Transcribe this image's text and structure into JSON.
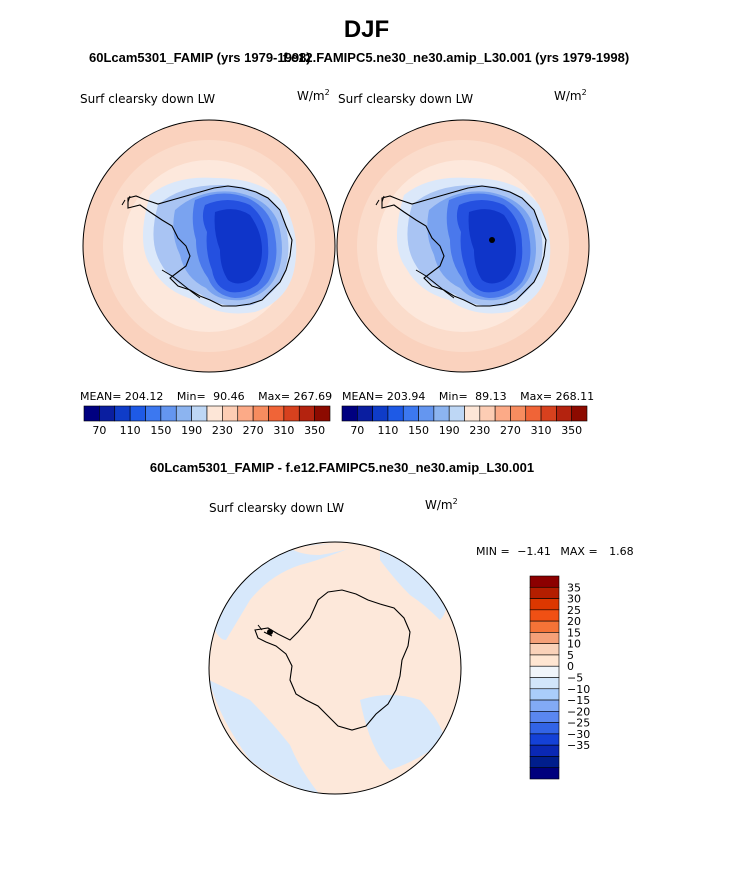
{
  "figure": {
    "title": "DJF",
    "subtitle_left": "60Lcam5301_FAMIP (yrs 1979-1998)",
    "subtitle_right": "f.e12.FAMIPC5.ne30_ne30.amip_L30.001 (yrs 1979-1998)",
    "diff_title": "60Lcam5301_FAMIP - f.e12.FAMIPC5.ne30_ne30.amip_L30.001"
  },
  "panels": [
    {
      "variable": "Surf clearsky down LW",
      "units_base": "W/m",
      "units_exp": "2",
      "stats": {
        "mean_label": "MEAN=",
        "mean": "204.12",
        "min_label": "Min=",
        "min": "90.46",
        "max_label": "Max=",
        "max": "267.69"
      }
    },
    {
      "variable": "Surf clearsky down LW",
      "units_base": "W/m",
      "units_exp": "2",
      "stats": {
        "mean_label": "MEAN=",
        "mean": "203.94",
        "min_label": "Min=",
        "min": "89.13",
        "max_label": "Max=",
        "max": "268.11"
      }
    }
  ],
  "diff_panel": {
    "variable": "Surf clearsky down LW",
    "units_base": "W/m",
    "units_exp": "2",
    "min_label": "MIN =",
    "min": "−1.41",
    "max_label": "MAX =",
    "max": "1.68"
  },
  "colorbar_abs": {
    "colors": [
      "#000080",
      "#0a1ea0",
      "#0f3cc8",
      "#1e5ae6",
      "#3c78f0",
      "#6496f0",
      "#8cb4f0",
      "#bed7f5",
      "#fde6d7",
      "#fdcdb4",
      "#fcaa87",
      "#f78c5f",
      "#f06437",
      "#d7411e",
      "#b4230f",
      "#8c0a00"
    ],
    "tick_labels": [
      "70",
      "110",
      "150",
      "190",
      "230",
      "270",
      "310",
      "350"
    ]
  },
  "colorbar_diff": {
    "colors": [
      "#8c0000",
      "#b41e00",
      "#dc3700",
      "#f05014",
      "#f57337",
      "#f5a078",
      "#fad2b9",
      "#ffe6d2",
      "#f0f5fa",
      "#d2e6fa",
      "#aacdfa",
      "#82aaf5",
      "#5a87f0",
      "#3264e6",
      "#1441d7",
      "#0a28b4",
      "#001e8c",
      "#00007d"
    ],
    "tick_labels": [
      "35",
      "30",
      "25",
      "20",
      "15",
      "10",
      "5",
      "0",
      "−5",
      "−10",
      "−15",
      "−20",
      "−25",
      "−30",
      "−35"
    ]
  },
  "map_colors": {
    "ring_outer": "#fad2be",
    "ring_mid": "#fbdccb",
    "ring_inner": "#fde8dc",
    "ice_edge": "#dbe8fa",
    "ice_1": "#a9c4f3",
    "ice_2": "#7aa3f0",
    "ice_3": "#4a78ec",
    "ice_4": "#2450e0",
    "ice_5": "#0f35c9",
    "diff_land": "#fde8da",
    "diff_neg": "#d7e8fb"
  }
}
